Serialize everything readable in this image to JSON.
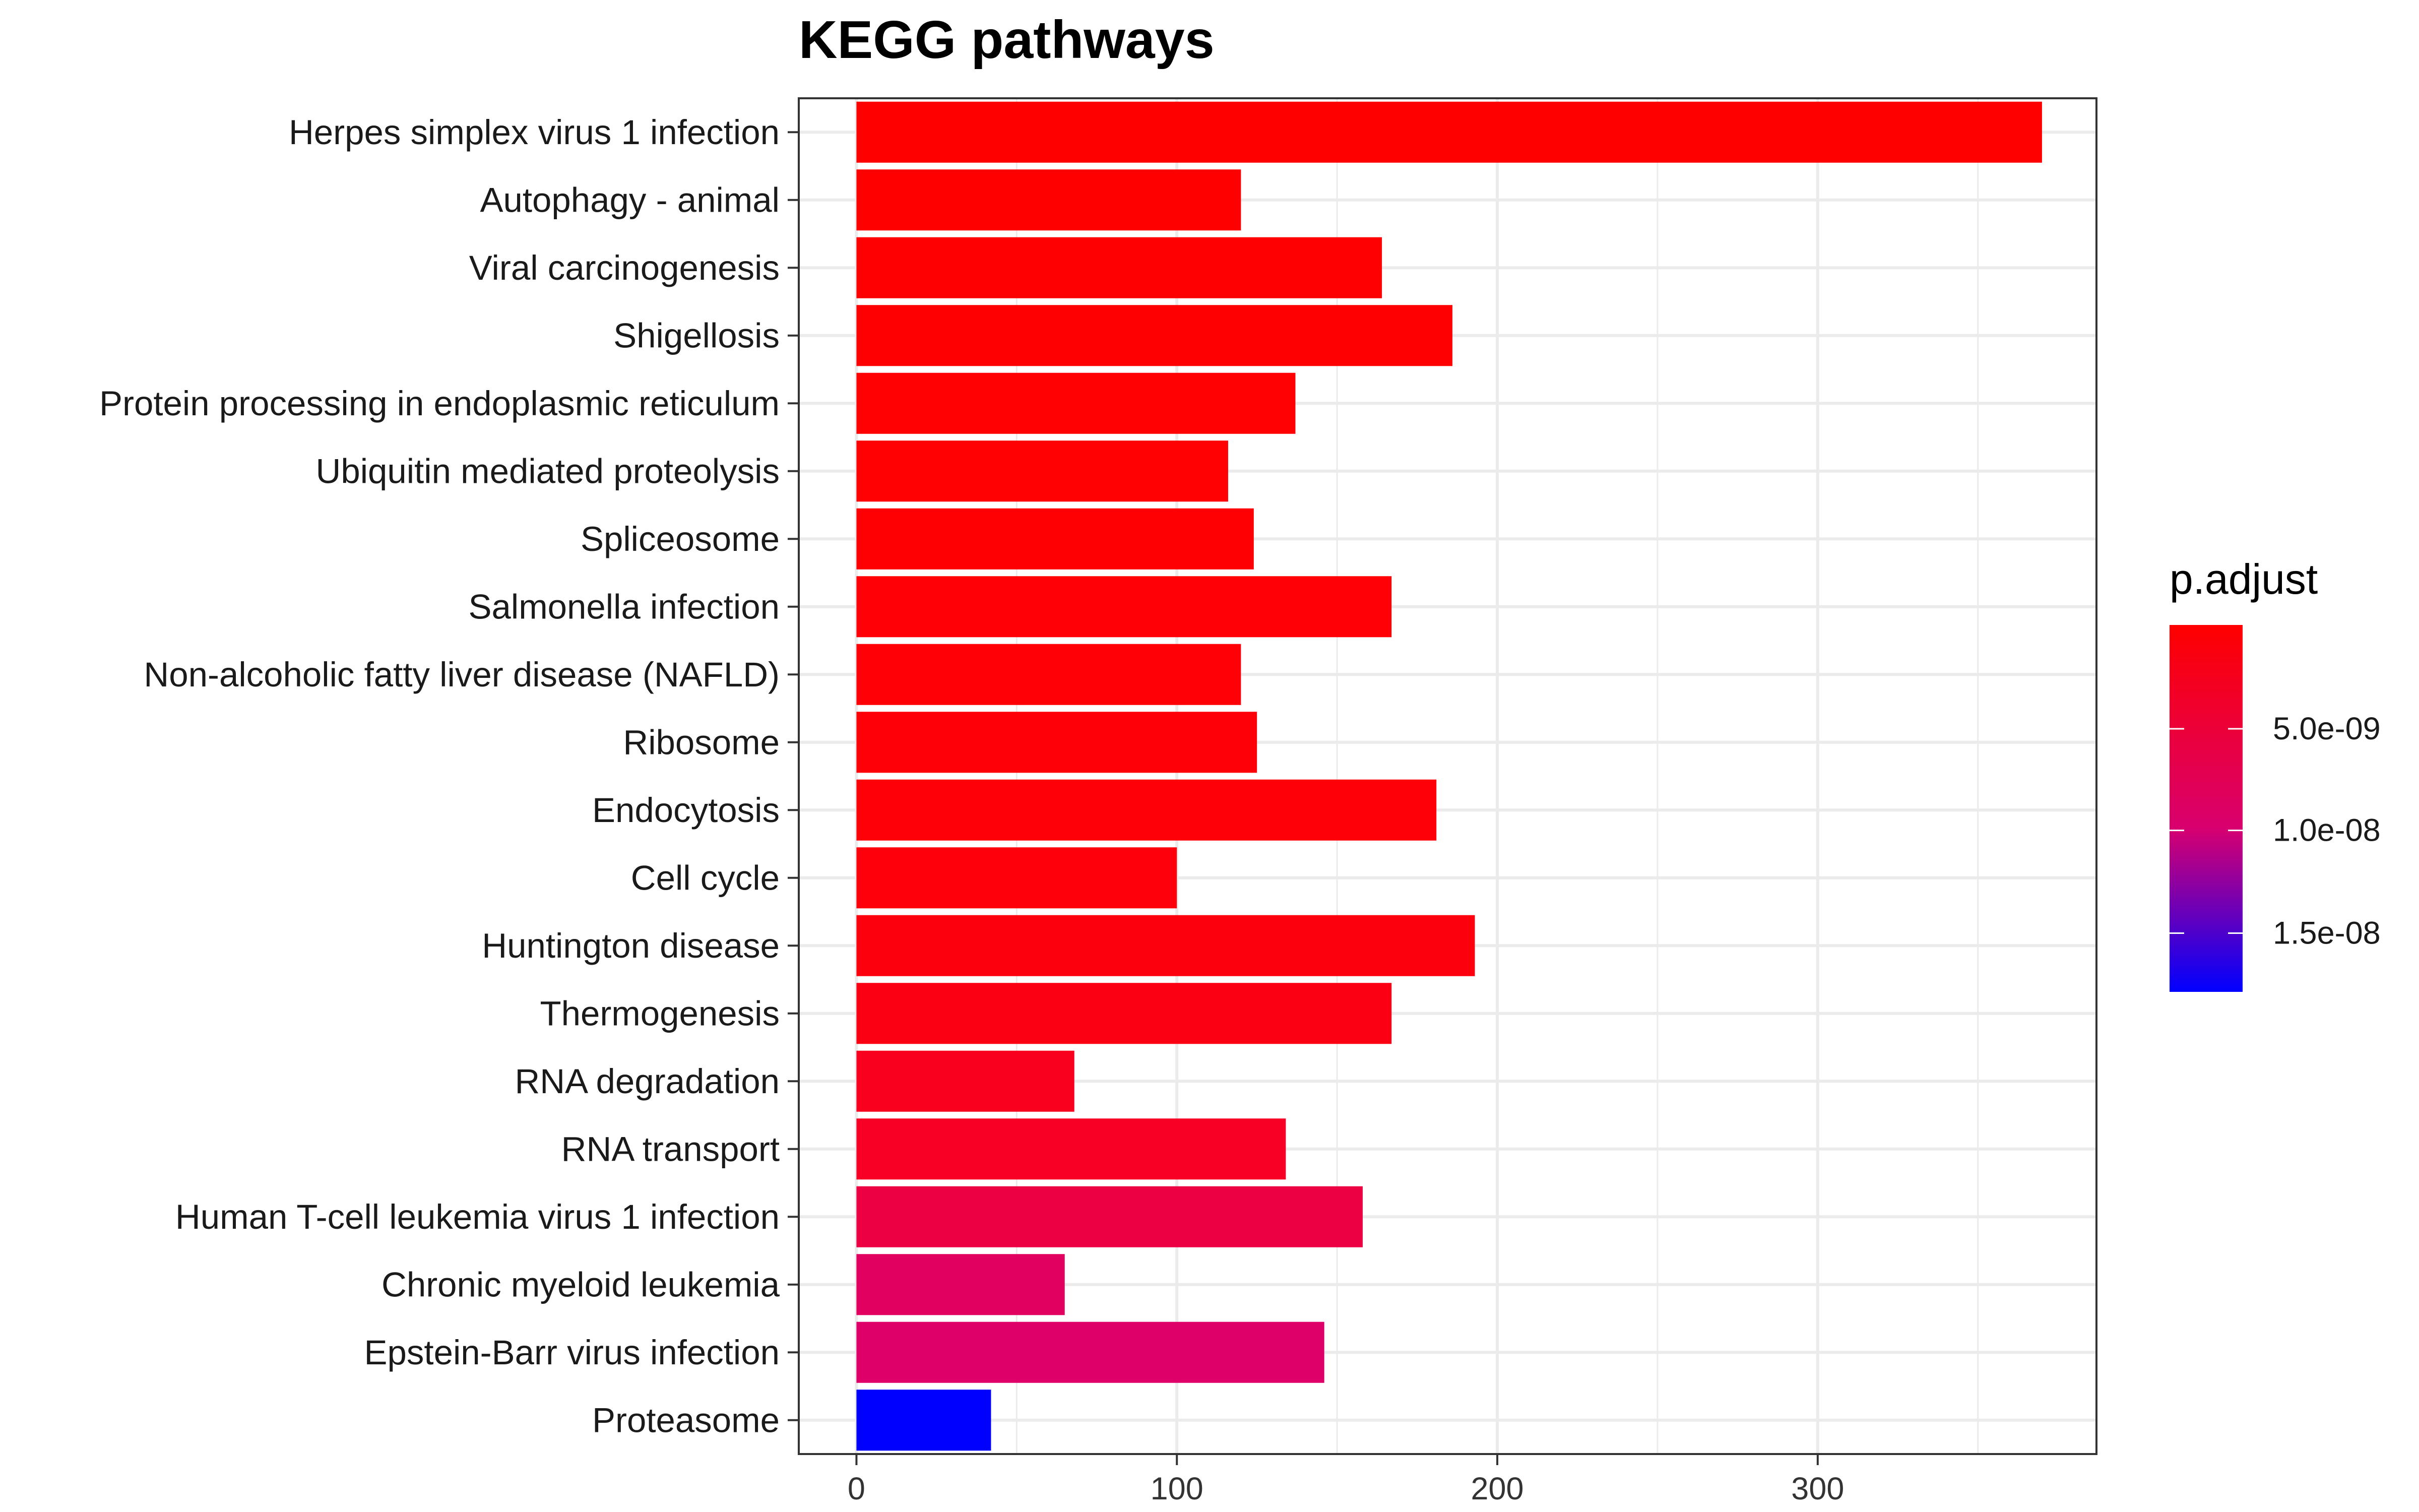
{
  "chart_data": {
    "type": "bar",
    "orientation": "horizontal",
    "title": "KEGG pathways",
    "xlabel": "",
    "ylabel": "",
    "xlim": [
      -18,
      387
    ],
    "xticks": [
      0,
      100,
      200,
      300
    ],
    "grid": true,
    "legend_position": "right",
    "categories": [
      "Herpes simplex virus 1 infection",
      "Autophagy - animal",
      "Viral carcinogenesis",
      "Shigellosis",
      "Protein processing in endoplasmic reticulum",
      "Ubiquitin mediated proteolysis",
      "Spliceosome",
      "Salmonella infection",
      "Non-alcoholic fatty liver disease (NAFLD)",
      "Ribosome",
      "Endocytosis",
      "Cell cycle",
      "Huntington disease",
      "Thermogenesis",
      "RNA degradation",
      "RNA transport",
      "Human T-cell leukemia virus 1 infection",
      "Chronic myeloid leukemia",
      "Epstein-Barr virus infection",
      "Proteasome"
    ],
    "values": [
      370,
      120,
      164,
      186,
      137,
      116,
      124,
      167,
      120,
      125,
      181,
      100,
      193,
      167,
      68,
      134,
      158,
      65,
      146,
      42
    ],
    "colors": [
      "#ff0000",
      "#ff0001",
      "#ff0002",
      "#ff0002",
      "#ff0003",
      "#ff0003",
      "#fe0004",
      "#fe0005",
      "#fe0006",
      "#fe0007",
      "#fd0008",
      "#fd000b",
      "#fc000d",
      "#fb0012",
      "#f9001f",
      "#f80025",
      "#ec0043",
      "#e1005f",
      "#de0068",
      "#0000ff"
    ],
    "legend": {
      "title": "p.adjust",
      "ticks": [
        "5.0e-09",
        "1.0e-08",
        "1.5e-08"
      ],
      "tick_fractions": [
        0.283,
        0.56,
        0.84
      ],
      "gradient": [
        "#ff0000",
        "#0000ff"
      ]
    }
  }
}
